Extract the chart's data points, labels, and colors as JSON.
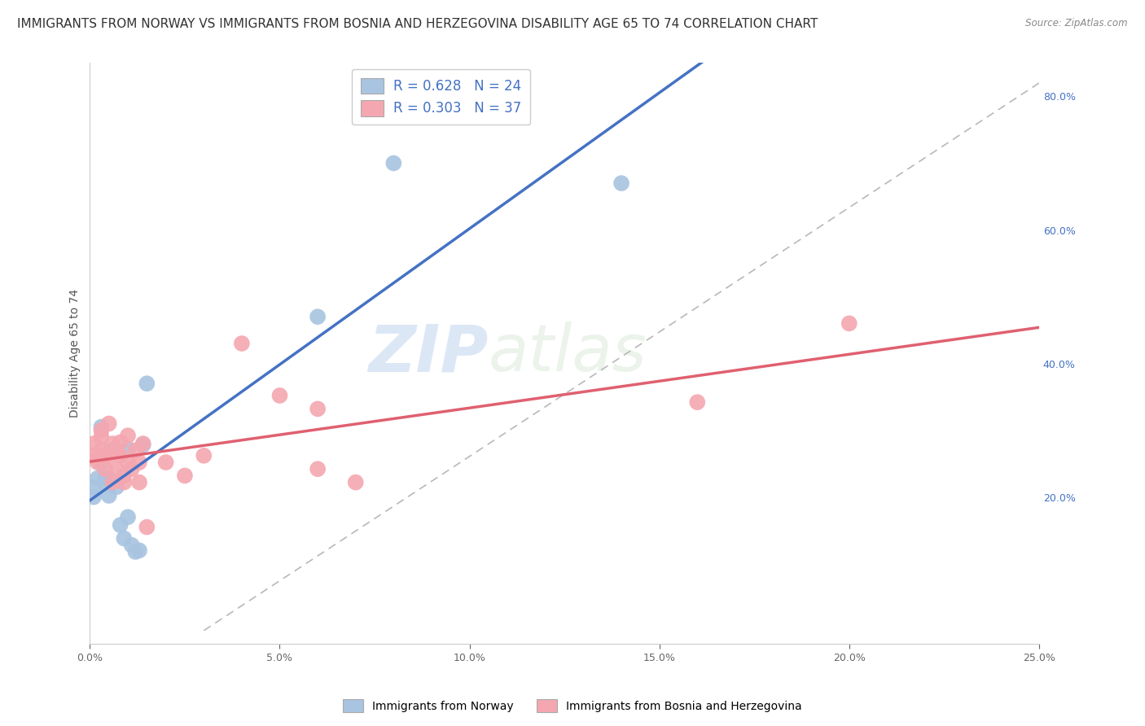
{
  "title": "IMMIGRANTS FROM NORWAY VS IMMIGRANTS FROM BOSNIA AND HERZEGOVINA DISABILITY AGE 65 TO 74 CORRELATION CHART",
  "source": "Source: ZipAtlas.com",
  "xlabel_label": "Immigrants from Norway",
  "xlabel_label2": "Immigrants from Bosnia and Herzegovina",
  "ylabel": "Disability Age 65 to 74",
  "watermark_zip": "ZIP",
  "watermark_atlas": "atlas",
  "xlim": [
    0.0,
    0.25
  ],
  "ylim": [
    -0.02,
    0.85
  ],
  "xticks": [
    0.0,
    0.05,
    0.1,
    0.15,
    0.2,
    0.25
  ],
  "yticks_right": [
    0.2,
    0.4,
    0.6,
    0.8
  ],
  "norway_R": 0.628,
  "norway_N": 24,
  "bosnia_R": 0.303,
  "bosnia_N": 37,
  "norway_color": "#a8c4e0",
  "norway_line_color": "#4472c4",
  "bosnia_color": "#f4a7b0",
  "bosnia_line_color": "#e06070",
  "norway_points": [
    [
      0.001,
      0.215
    ],
    [
      0.001,
      0.2
    ],
    [
      0.002,
      0.228
    ],
    [
      0.003,
      0.25
    ],
    [
      0.003,
      0.305
    ],
    [
      0.004,
      0.228
    ],
    [
      0.004,
      0.22
    ],
    [
      0.005,
      0.268
    ],
    [
      0.005,
      0.228
    ],
    [
      0.005,
      0.202
    ],
    [
      0.006,
      0.27
    ],
    [
      0.007,
      0.215
    ],
    [
      0.008,
      0.158
    ],
    [
      0.009,
      0.138
    ],
    [
      0.01,
      0.272
    ],
    [
      0.01,
      0.17
    ],
    [
      0.011,
      0.128
    ],
    [
      0.012,
      0.118
    ],
    [
      0.013,
      0.12
    ],
    [
      0.014,
      0.278
    ],
    [
      0.015,
      0.37
    ],
    [
      0.06,
      0.47
    ],
    [
      0.08,
      0.7
    ],
    [
      0.14,
      0.67
    ]
  ],
  "bosnia_points": [
    [
      0.001,
      0.262
    ],
    [
      0.001,
      0.28
    ],
    [
      0.002,
      0.258
    ],
    [
      0.002,
      0.252
    ],
    [
      0.003,
      0.3
    ],
    [
      0.003,
      0.29
    ],
    [
      0.003,
      0.27
    ],
    [
      0.004,
      0.262
    ],
    [
      0.004,
      0.242
    ],
    [
      0.005,
      0.262
    ],
    [
      0.005,
      0.31
    ],
    [
      0.006,
      0.28
    ],
    [
      0.006,
      0.222
    ],
    [
      0.007,
      0.27
    ],
    [
      0.007,
      0.242
    ],
    [
      0.008,
      0.282
    ],
    [
      0.008,
      0.262
    ],
    [
      0.009,
      0.232
    ],
    [
      0.009,
      0.222
    ],
    [
      0.01,
      0.292
    ],
    [
      0.01,
      0.252
    ],
    [
      0.011,
      0.242
    ],
    [
      0.012,
      0.27
    ],
    [
      0.013,
      0.252
    ],
    [
      0.013,
      0.222
    ],
    [
      0.014,
      0.28
    ],
    [
      0.015,
      0.155
    ],
    [
      0.02,
      0.252
    ],
    [
      0.025,
      0.232
    ],
    [
      0.03,
      0.262
    ],
    [
      0.04,
      0.43
    ],
    [
      0.05,
      0.352
    ],
    [
      0.06,
      0.332
    ],
    [
      0.06,
      0.242
    ],
    [
      0.07,
      0.222
    ],
    [
      0.16,
      0.342
    ],
    [
      0.2,
      0.46
    ]
  ],
  "grid_color": "#cccccc",
  "background_color": "#ffffff",
  "title_fontsize": 11,
  "axis_label_fontsize": 10,
  "tick_label_fontsize": 9,
  "legend_fontsize": 11
}
